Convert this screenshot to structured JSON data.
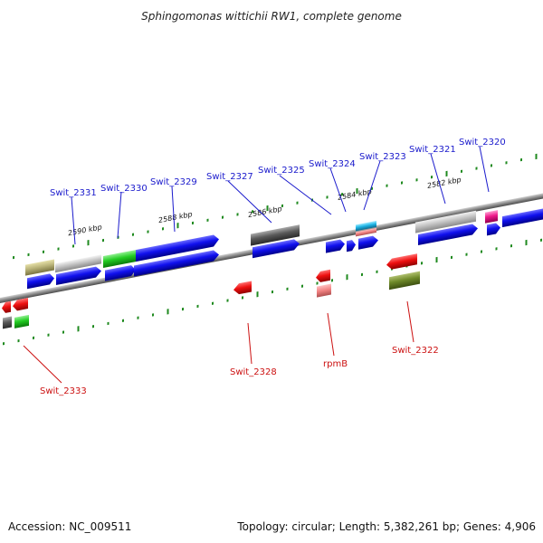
{
  "title": "Sphingomonas wittichii RW1, complete genome",
  "footer": {
    "accession": "Accession: NC_009511",
    "summary": "Topology: circular; Length: 5,382,261 bp; Genes: 4,906"
  },
  "scale": {
    "labels": [
      "2590 kbp",
      "2588 kbp",
      "2586 kbp",
      "2584 kbp",
      "2582 kbp"
    ]
  },
  "colors": {
    "forward_label": "#1a1acc",
    "reverse_label": "#cc1111",
    "backbone": "#8a8a8a",
    "tick": "#1f8a1f"
  },
  "genes": {
    "forward": [
      "Swit_2331",
      "Swit_2330",
      "Swit_2329",
      "Swit_2327",
      "Swit_2325",
      "Swit_2324",
      "Swit_2323",
      "Swit_2321",
      "Swit_2320"
    ],
    "reverse": [
      "Swit_2333",
      "Swit_2328",
      "rpmB",
      "Swit_2322"
    ]
  }
}
